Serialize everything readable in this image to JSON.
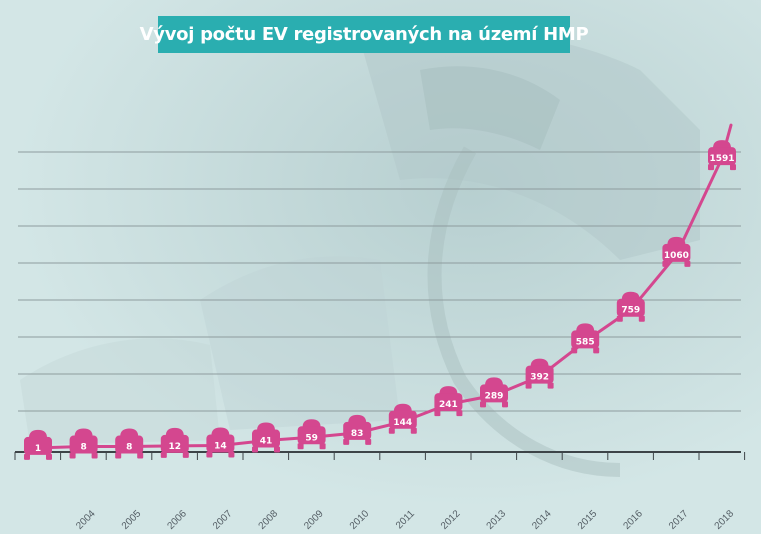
{
  "title": "Vývoj počtu EV registrovaných na území HMP",
  "colors": {
    "accent": "#2aaeb0",
    "series": "#d4478f",
    "grid": "#8e9c9e",
    "axis": "#3d4448",
    "background": "#cfe3e3"
  },
  "chart_data": {
    "type": "line",
    "title": "Vývoj počtu EV registrovaných na území HMP",
    "xlabel": "",
    "ylabel": "",
    "categories": [
      "",
      "2004",
      "2005",
      "2006",
      "2007",
      "2008",
      "2009",
      "2010",
      "2011",
      "2012",
      "2013",
      "2014",
      "2015",
      "2016",
      "2017",
      "2018"
    ],
    "values": [
      1,
      8,
      8,
      12,
      14,
      41,
      59,
      83,
      144,
      241,
      289,
      392,
      585,
      759,
      1060,
      1591
    ],
    "data_labels": [
      "1",
      "8",
      "8",
      "12",
      "14",
      "41",
      "59",
      "83",
      "144",
      "241",
      "289",
      "392",
      "585",
      "759",
      "1060",
      "1591"
    ],
    "marker": "car-icon",
    "grid": true,
    "legend": "none",
    "y_axis_labels_visible": false
  }
}
